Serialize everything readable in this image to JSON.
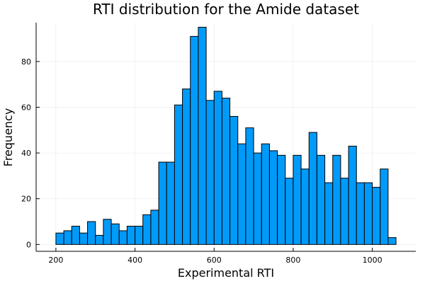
{
  "chart_data": {
    "type": "bar",
    "title": "RTI distribution for the Amide dataset",
    "xlabel": "Experimental RTI",
    "ylabel": "Frequency",
    "xlim": [
      150,
      1110
    ],
    "ylim": [
      -3,
      97
    ],
    "xticks": [
      200,
      400,
      600,
      800,
      1000
    ],
    "yticks": [
      0,
      20,
      40,
      60,
      80
    ],
    "grid": true,
    "legend": "none",
    "bar_color": "#009af9",
    "bin_width": 20,
    "bin_starts": [
      200,
      220,
      240,
      260,
      280,
      300,
      320,
      340,
      360,
      380,
      400,
      420,
      440,
      460,
      480,
      500,
      520,
      540,
      560,
      580,
      600,
      620,
      640,
      660,
      680,
      700,
      720,
      740,
      760,
      780,
      800,
      820,
      840,
      860,
      880,
      900,
      920,
      940,
      960,
      980,
      1000,
      1020,
      1040
    ],
    "values": [
      5,
      6,
      8,
      5,
      10,
      4,
      11,
      9,
      6,
      8,
      8,
      13,
      15,
      36,
      36,
      61,
      68,
      91,
      95,
      63,
      67,
      64,
      56,
      44,
      51,
      40,
      44,
      41,
      39,
      29,
      39,
      33,
      49,
      39,
      27,
      39,
      29,
      43,
      27,
      27,
      25,
      33,
      3
    ]
  }
}
